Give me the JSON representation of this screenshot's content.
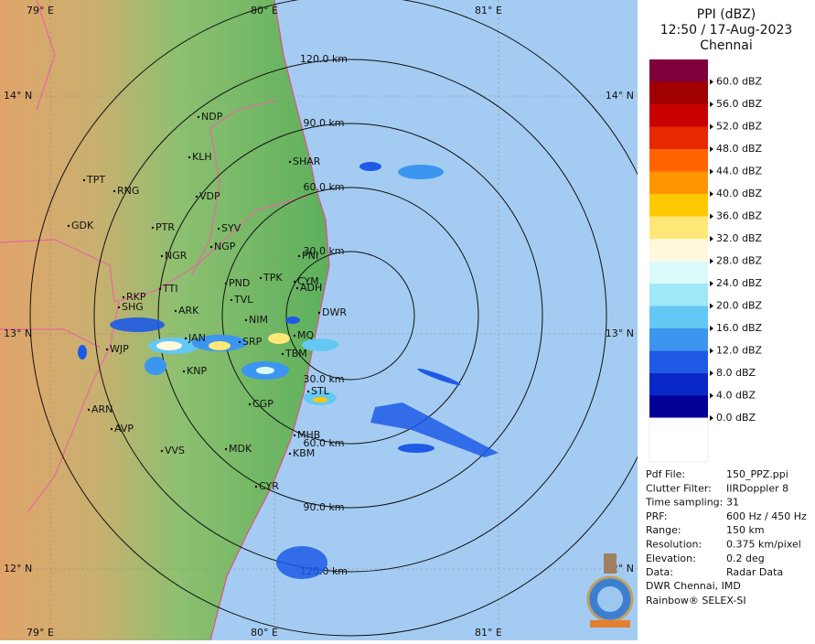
{
  "header": {
    "title": "PPI (dBZ)",
    "time": "12:50 / 17-Aug-2023",
    "station": "Chennai"
  },
  "legend": [
    {
      "label": "60.0 dBZ",
      "color": "#80003c"
    },
    {
      "label": "56.0 dBZ",
      "color": "#a00000"
    },
    {
      "label": "52.0 dBZ",
      "color": "#c80000"
    },
    {
      "label": "48.0 dBZ",
      "color": "#e82800"
    },
    {
      "label": "44.0 dBZ",
      "color": "#ff6400"
    },
    {
      "label": "40.0 dBZ",
      "color": "#ff9600"
    },
    {
      "label": "36.0 dBZ",
      "color": "#ffc800"
    },
    {
      "label": "32.0 dBZ",
      "color": "#ffe878"
    },
    {
      "label": "28.0 dBZ",
      "color": "#fff8dc"
    },
    {
      "label": "24.0 dBZ",
      "color": "#dcfafa"
    },
    {
      "label": "20.0 dBZ",
      "color": "#a0e8f8"
    },
    {
      "label": "16.0 dBZ",
      "color": "#64c8f4"
    },
    {
      "label": "12.0 dBZ",
      "color": "#3c96f0"
    },
    {
      "label": "8.0 dBZ",
      "color": "#1e5ae6"
    },
    {
      "label": "4.0 dBZ",
      "color": "#0a28c8"
    },
    {
      "label": "0.0 dBZ",
      "color": "#000096"
    }
  ],
  "info": [
    [
      "Pdf File:",
      "150_PPZ.ppi"
    ],
    [
      "Clutter Filter:",
      "IIRDoppler 8"
    ],
    [
      "Time sampling:",
      "31"
    ],
    [
      "PRF:",
      "600 Hz / 450 Hz"
    ],
    [
      "Range:",
      "150 km"
    ],
    [
      "Resolution:",
      "0.375 km/pixel"
    ],
    [
      "Elevation:",
      "0.2 deg"
    ],
    [
      "Data:",
      "Radar Data"
    ]
  ],
  "credits": [
    "DWR Chennai, IMD",
    "Rainbow® SELEX-SI"
  ],
  "map": {
    "lon_labels": [
      "79° E",
      "80° E",
      "81° E"
    ],
    "lat_labels": [
      "14° N",
      "13° N",
      "12° N"
    ],
    "range_labels": [
      "30.0 km",
      "60.0 km",
      "90.0 km",
      "120.0 km"
    ],
    "stations": [
      "NDP",
      "KLH",
      "TPT",
      "RNG",
      "VDP",
      "GDK",
      "PTR",
      "SYV",
      "NGP",
      "NGR",
      "SHAR",
      "PNI",
      "TPK",
      "CYM",
      "ADH",
      "PND",
      "TTI",
      "RKP",
      "SHG",
      "ARK",
      "TVL",
      "DWR",
      "NIM",
      "WJP",
      "JAN",
      "SRP",
      "MQ",
      "TBM",
      "KNP",
      "STL",
      "CGP",
      "ARN",
      "AVP",
      "MHB",
      "KBM",
      "VVS",
      "MDK",
      "CYR"
    ]
  }
}
